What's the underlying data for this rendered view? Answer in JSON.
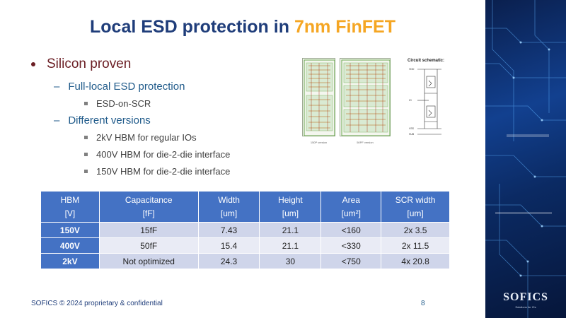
{
  "title": {
    "main": "Local ESD protection in",
    "accent": "7nm FinFET"
  },
  "bullets": {
    "l1": "Silicon proven",
    "l2a": "Full-local ESD protection",
    "l3a": "ESD-on-SCR",
    "l2b": "Different versions",
    "l3b": "2kV HBM for regular IOs",
    "l3c": "400V HBM for die-2-die interface",
    "l3d": "150V HBM for die-2-die interface"
  },
  "figure": {
    "caption_a": "150P version",
    "caption_b": "50PF version",
    "schematic_title": "Circuit schematic:",
    "schematic_labels": [
      "VDD",
      "IO",
      "VSS",
      "SUB"
    ]
  },
  "table": {
    "headers": [
      [
        "HBM",
        "[V]"
      ],
      [
        "Capacitance",
        "[fF]"
      ],
      [
        "Width",
        "[um]"
      ],
      [
        "Height",
        "[um]"
      ],
      [
        "Area",
        "[um²]"
      ],
      [
        "SCR width",
        "[um]"
      ]
    ],
    "rows": [
      [
        "150V",
        "15fF",
        "7.43",
        "21.1",
        "<160",
        "2x 3.5"
      ],
      [
        "400V",
        "50fF",
        "15.4",
        "21.1",
        "<330",
        "2x 11.5"
      ],
      [
        "2kV",
        "Not optimized",
        "24.3",
        "30",
        "<750",
        "4x 20.8"
      ]
    ]
  },
  "footer": {
    "text": "SOFICS © 2024 proprietary & confidential",
    "page": "8"
  },
  "logo": {
    "name": "SOFICS",
    "tagline": "Solutions for ICs"
  },
  "colors": {
    "title": "#1f3d7a",
    "accent": "#f5a623",
    "table_header": "#4472c4"
  }
}
